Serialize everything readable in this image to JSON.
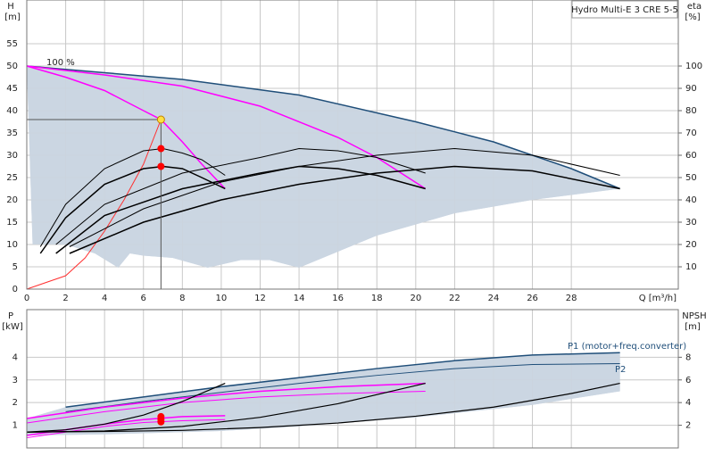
{
  "chart_data": [
    {
      "type": "line",
      "ylabel": "H",
      "yunit": "[m]",
      "y2label": "eta",
      "y2unit": "[%]",
      "xlabel": "Q [m³/h]",
      "legend_text": "Hydro Multi-E 3 CRE 5-5",
      "annotation": "100 %",
      "grid": true,
      "xlim": [
        0,
        33.5
      ],
      "ylim": [
        0,
        64.8
      ],
      "y2lim": [
        0,
        129.6
      ],
      "xticks": [
        0,
        2,
        4,
        6,
        8,
        10,
        12,
        14,
        16,
        18,
        20,
        22,
        24,
        26,
        28
      ],
      "yticks": [
        0,
        5,
        10,
        15,
        20,
        25,
        30,
        35,
        40,
        45,
        50,
        55
      ],
      "y2ticks": [
        10,
        20,
        30,
        40,
        50,
        60,
        70,
        80,
        90,
        100
      ],
      "series": [
        {
          "kind": "area",
          "color": "#cbd6e2",
          "x": [
            0,
            4,
            8,
            14,
            20,
            24,
            28,
            30.5,
            26,
            22,
            18,
            14,
            12.5,
            11,
            9.3,
            7.5,
            6,
            5.3,
            4.7,
            3.5,
            2,
            0.3
          ],
          "values": [
            50,
            48.5,
            47,
            43.5,
            37.5,
            33,
            27,
            22.5,
            20,
            17,
            12,
            4.8,
            6.5,
            6.5,
            4.8,
            7,
            7.5,
            8,
            4.8,
            8,
            10,
            10
          ]
        },
        {
          "color": "#1f4e79",
          "width": 1.5,
          "x": [
            0,
            4,
            8,
            14,
            20,
            24,
            28,
            30.5
          ],
          "values": [
            50,
            48.5,
            47,
            43.5,
            37.5,
            33,
            27,
            22.5
          ]
        },
        {
          "color": "#ff00ff",
          "width": 1.5,
          "x": [
            0,
            2,
            4,
            6,
            6.9,
            8,
            9,
            10.2
          ],
          "values": [
            50,
            47.5,
            44.5,
            40,
            38,
            33,
            28,
            22.5
          ]
        },
        {
          "color": "#ff00ff",
          "width": 1.5,
          "x": [
            0,
            4,
            8,
            12,
            16,
            18,
            20.5
          ],
          "values": [
            50,
            48,
            45.5,
            41,
            34,
            29.5,
            22.5
          ]
        },
        {
          "color": "#ff3030",
          "width": 1,
          "x": [
            0,
            2,
            3,
            4,
            5,
            6,
            6.9
          ],
          "values": [
            0,
            3,
            7,
            13,
            20,
            28,
            38
          ]
        },
        {
          "color": "#000000",
          "width": 1.5,
          "axis": "y2",
          "x": [
            0.7,
            2,
            4,
            6,
            7,
            8,
            9,
            10.2
          ],
          "values": [
            16,
            32,
            47,
            54,
            55,
            54,
            50,
            45
          ]
        },
        {
          "color": "#000000",
          "width": 1,
          "axis": "y2",
          "x": [
            0.7,
            2,
            4,
            6,
            7,
            8,
            9,
            10.2
          ],
          "values": [
            19,
            38,
            54,
            62,
            63,
            61,
            58,
            51
          ]
        },
        {
          "color": "#000000",
          "width": 1.5,
          "axis": "y2",
          "x": [
            1.5,
            4,
            8,
            12,
            14,
            16,
            18,
            20.5
          ],
          "values": [
            16,
            33,
            45,
            52,
            55,
            54,
            51,
            45
          ]
        },
        {
          "color": "#000000",
          "width": 1,
          "axis": "y2",
          "x": [
            1.5,
            4,
            8,
            12,
            14,
            16,
            18,
            20.5
          ],
          "values": [
            20,
            38,
            52,
            59,
            63,
            62,
            59,
            52
          ]
        },
        {
          "color": "#000000",
          "width": 1.5,
          "axis": "y2",
          "x": [
            2.2,
            6,
            10,
            14,
            18,
            22,
            26,
            30.5
          ],
          "values": [
            16,
            30,
            40,
            47,
            52,
            55,
            53,
            45
          ]
        },
        {
          "color": "#000000",
          "width": 1,
          "axis": "y2",
          "x": [
            2.2,
            6,
            10,
            14,
            18,
            22,
            26,
            30.5
          ],
          "values": [
            19,
            36,
            48,
            55,
            60,
            63,
            60,
            51
          ]
        }
      ],
      "points": [
        {
          "x": 6.9,
          "y": 38,
          "color": "#ffe040",
          "guide": true
        },
        {
          "x": 6.9,
          "y": 31.5,
          "color": "#ff0000"
        },
        {
          "x": 6.9,
          "y": 27.5,
          "color": "#ff0000"
        }
      ]
    },
    {
      "type": "line",
      "ylabel": "P",
      "yunit": "[kW]",
      "y2label": "NPSH",
      "y2unit": "[m]",
      "p1_label": "P1 (motor+freq.converter)",
      "p2_label": "P2",
      "grid": true,
      "xlim": [
        0,
        33.5
      ],
      "ylim": [
        0,
        6.1
      ],
      "y2lim": [
        0,
        12.2
      ],
      "xticks": [
        0,
        2,
        4,
        6,
        8,
        10,
        12,
        14,
        16,
        18,
        20,
        22,
        24,
        26,
        28
      ],
      "yticks": [
        1,
        2,
        3,
        4
      ],
      "y2ticks": [
        2,
        4,
        6,
        8
      ],
      "series": [
        {
          "kind": "area",
          "color": "#cbd6e2",
          "x": [
            0,
            2,
            6,
            10,
            14,
            18,
            22,
            26,
            30.5,
            30.5,
            26,
            20,
            14,
            10,
            4,
            0
          ],
          "values": [
            1.3,
            1.8,
            2.25,
            2.7,
            3.1,
            3.5,
            3.85,
            4.1,
            4.2,
            2.5,
            1.9,
            1.35,
            0.95,
            0.75,
            0.6,
            0.55
          ]
        },
        {
          "color": "#1f4e79",
          "width": 1.5,
          "x": [
            2,
            6,
            10,
            14,
            18,
            22,
            26,
            30.5
          ],
          "values": [
            1.8,
            2.25,
            2.7,
            3.1,
            3.5,
            3.85,
            4.1,
            4.2
          ]
        },
        {
          "color": "#1f4e79",
          "width": 1,
          "x": [
            2,
            6,
            10,
            14,
            18,
            22,
            26,
            30.5
          ],
          "values": [
            1.6,
            2.05,
            2.45,
            2.85,
            3.2,
            3.5,
            3.68,
            3.72
          ]
        },
        {
          "color": "#ff00ff",
          "width": 1.5,
          "x": [
            0,
            4,
            8,
            12,
            16,
            20.5
          ],
          "values": [
            1.3,
            1.8,
            2.2,
            2.5,
            2.7,
            2.85
          ]
        },
        {
          "color": "#ff00ff",
          "width": 1,
          "x": [
            0,
            4,
            8,
            12,
            16,
            20.5
          ],
          "values": [
            1.1,
            1.6,
            2.0,
            2.25,
            2.4,
            2.5
          ]
        },
        {
          "color": "#ff00ff",
          "width": 1.5,
          "x": [
            0,
            2,
            4,
            6,
            8,
            10.2
          ],
          "values": [
            0.55,
            0.8,
            1.05,
            1.25,
            1.38,
            1.42
          ]
        },
        {
          "color": "#ff00ff",
          "width": 1,
          "x": [
            0,
            2,
            4,
            6,
            8,
            10.2
          ],
          "values": [
            0.45,
            0.7,
            0.95,
            1.12,
            1.2,
            1.25
          ]
        },
        {
          "color": "#000000",
          "width": 1.2,
          "axis": "y2",
          "x": [
            0,
            4,
            8,
            12,
            16,
            20,
            24,
            28,
            30.5
          ],
          "values": [
            1.4,
            1.45,
            1.55,
            1.8,
            2.2,
            2.8,
            3.6,
            4.8,
            5.7
          ]
        },
        {
          "color": "#000000",
          "width": 1.2,
          "axis": "y2",
          "x": [
            0,
            4,
            8,
            12,
            16,
            20.5
          ],
          "values": [
            1.4,
            1.5,
            1.9,
            2.7,
            3.9,
            5.7
          ]
        },
        {
          "color": "#000000",
          "width": 1.2,
          "axis": "y2",
          "x": [
            0,
            2,
            4,
            6,
            8,
            10.2
          ],
          "values": [
            1.4,
            1.6,
            2.1,
            2.9,
            4.1,
            5.7
          ]
        }
      ],
      "points": [
        {
          "x": 6.9,
          "y": 1.15,
          "color": "#ff0000"
        },
        {
          "x": 6.9,
          "y": 1.27,
          "color": "#ff0000"
        },
        {
          "x": 6.9,
          "y": 1.38,
          "color": "#ff0000"
        }
      ]
    }
  ]
}
